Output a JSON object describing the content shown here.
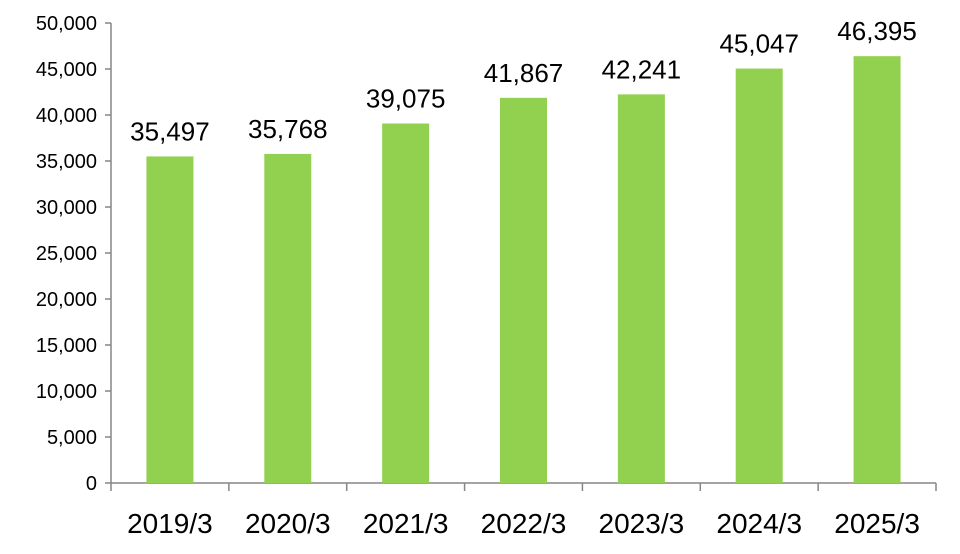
{
  "chart_data": {
    "type": "bar",
    "title": "",
    "xlabel": "",
    "ylabel": "",
    "categories": [
      "2019/3",
      "2020/3",
      "2021/3",
      "2022/3",
      "2023/3",
      "2024/3",
      "2025/3"
    ],
    "values": [
      35497,
      35768,
      39075,
      41867,
      42241,
      45047,
      46395
    ],
    "data_labels": [
      "35,497",
      "35,768",
      "39,075",
      "41,867",
      "42,241",
      "45,047",
      "46,395"
    ],
    "y_ticks": [
      0,
      5000,
      10000,
      15000,
      20000,
      25000,
      30000,
      35000,
      40000,
      45000,
      50000
    ],
    "y_tick_labels": [
      "0",
      "5,000",
      "10,000",
      "15,000",
      "20,000",
      "25,000",
      "30,000",
      "35,000",
      "40,000",
      "45,000",
      "50,000"
    ],
    "ylim": [
      0,
      50000
    ],
    "grid": false,
    "legend": "none",
    "bar_color": "#92d050",
    "axis_color": "#868686"
  }
}
